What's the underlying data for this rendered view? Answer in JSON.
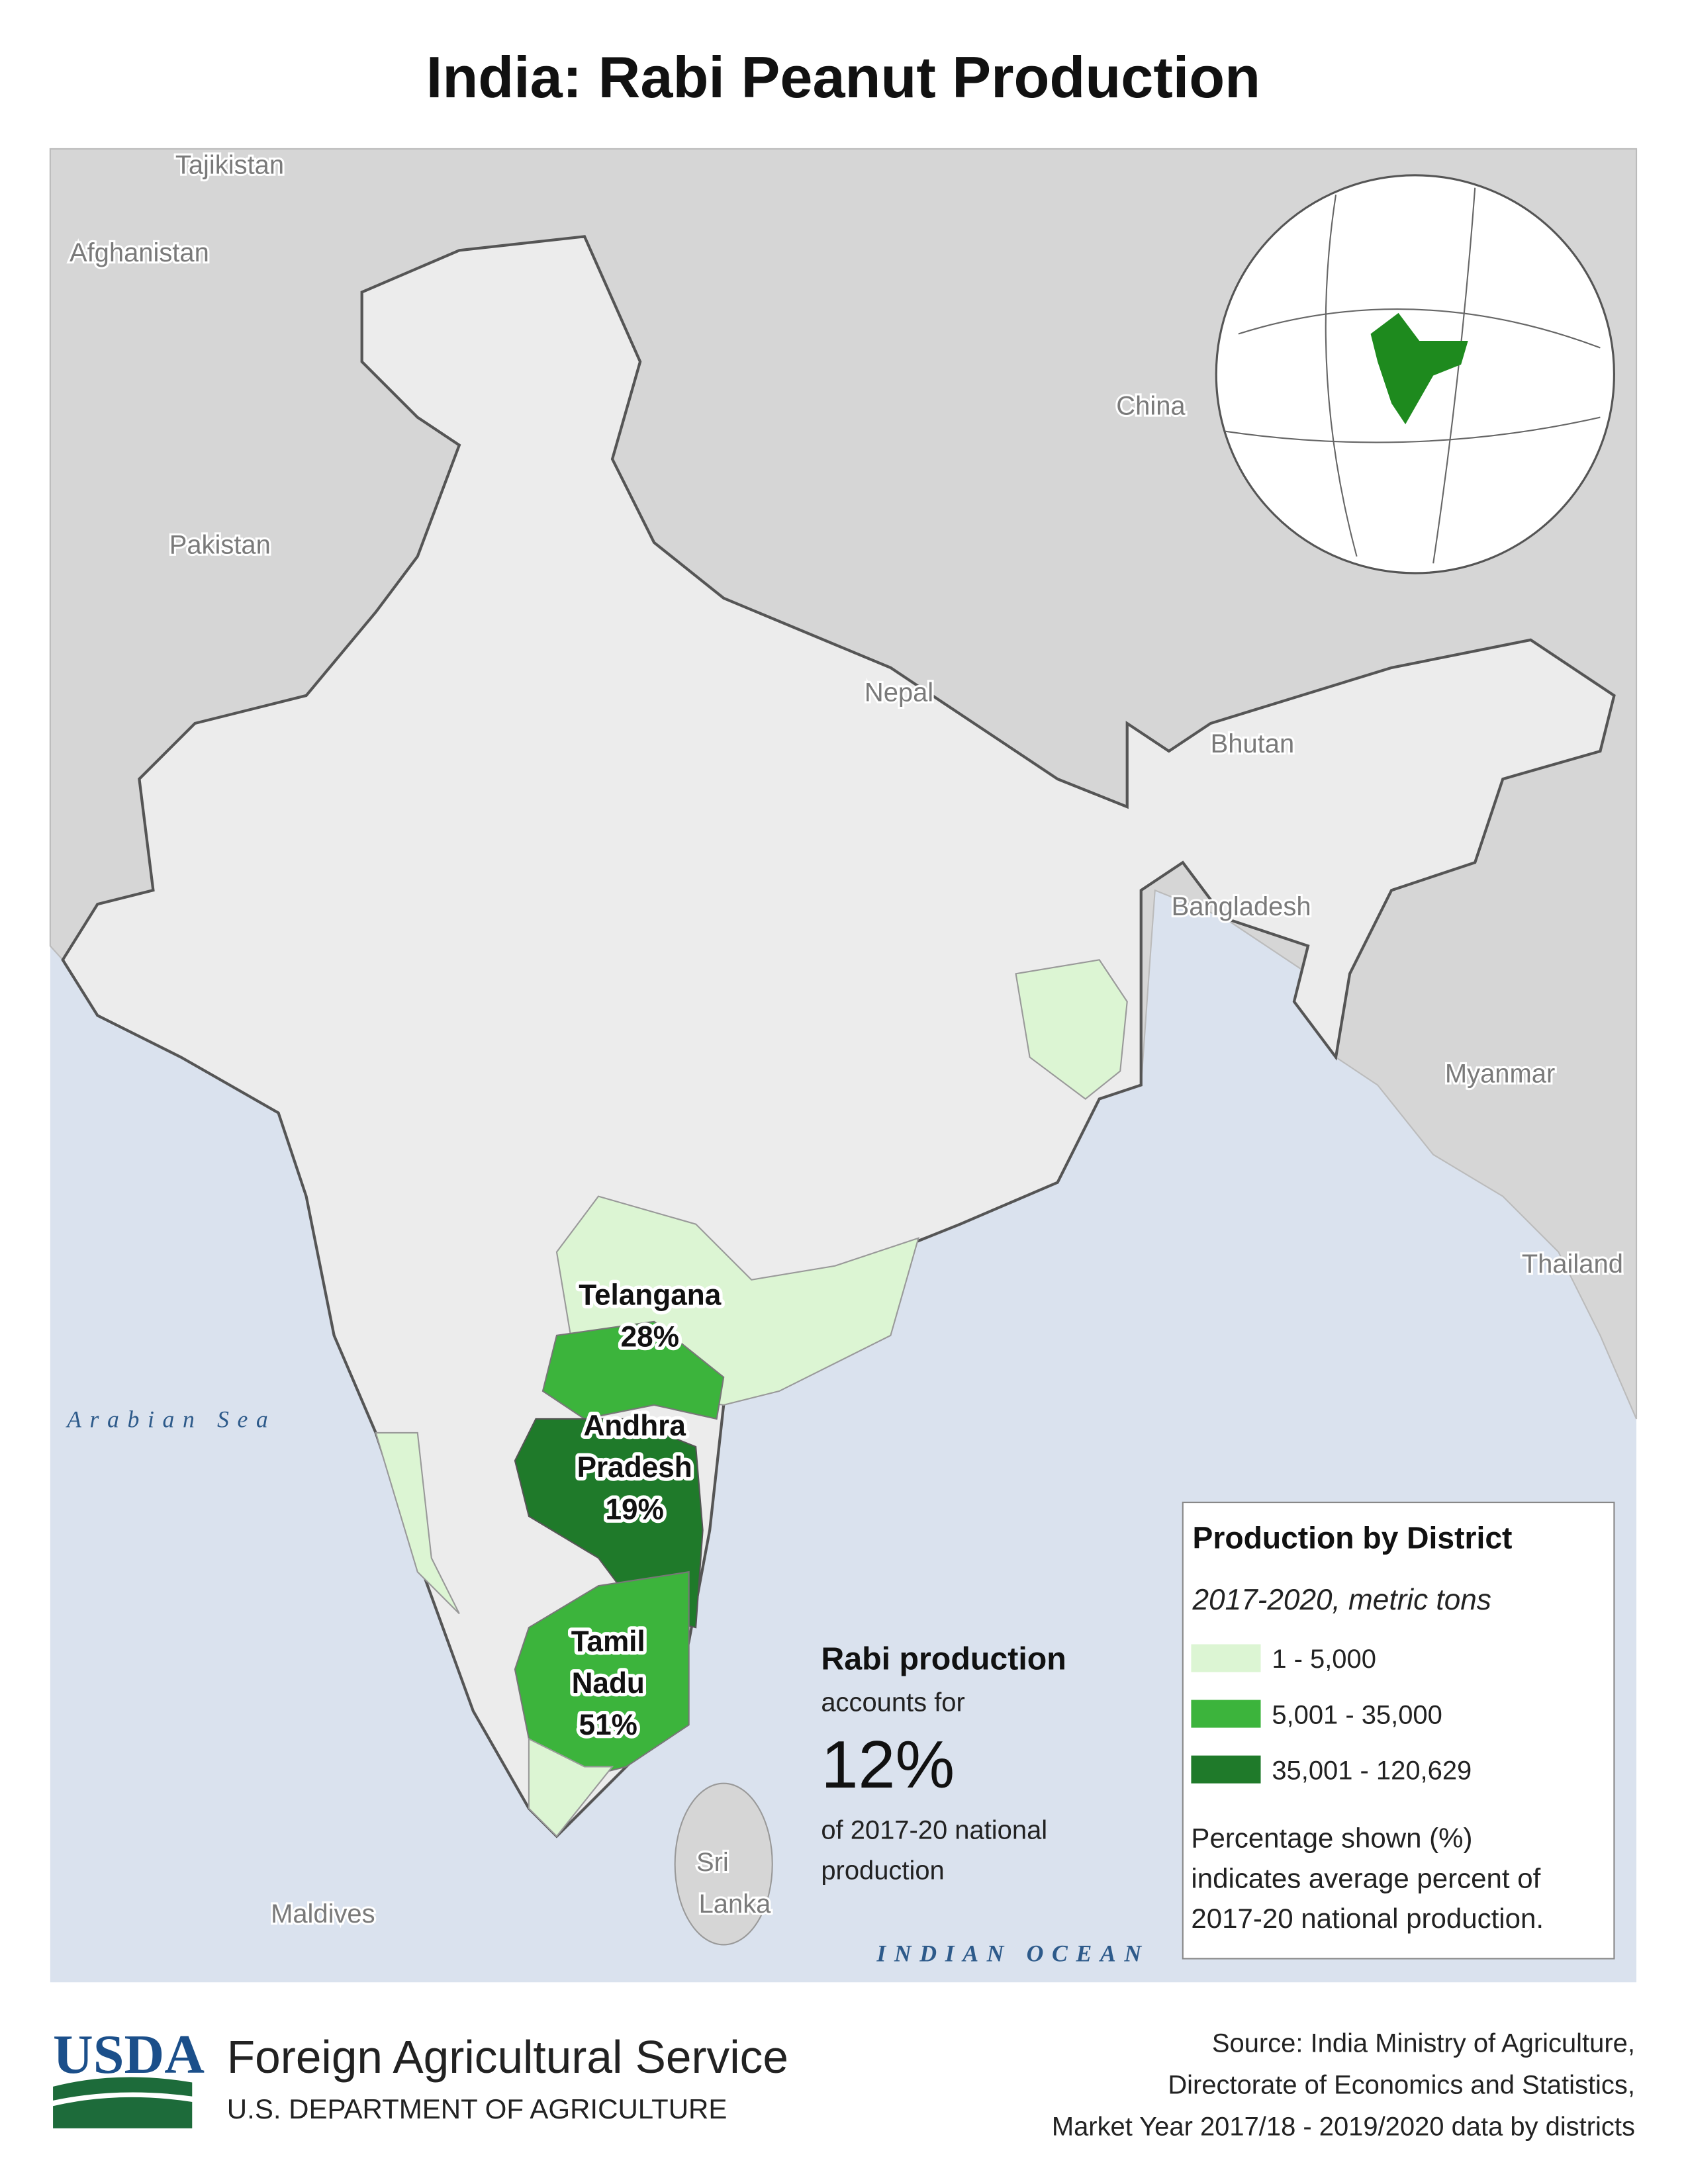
{
  "title": "India: Rabi Peanut Production",
  "map_labels": {
    "tajikistan": "Tajikistan",
    "afghanistan": "Afghanistan",
    "pakistan": "Pakistan",
    "china": "China",
    "nepal": "Nepal",
    "bhutan": "Bhutan",
    "bangladesh": "Bangladesh",
    "myanmar": "Myanmar",
    "thailand": "Thailand",
    "arabian_sea": "Arabian Sea",
    "sri_lanka": [
      "Sri",
      "Lanka"
    ],
    "maldives": "Maldives",
    "indian_ocean": "INDIAN OCEAN"
  },
  "states": [
    {
      "name_lines": [
        "Telangana"
      ],
      "share": "28%"
    },
    {
      "name_lines": [
        "Andhra",
        "Pradesh"
      ],
      "share": "19%"
    },
    {
      "name_lines": [
        "Tamil",
        "Nadu"
      ],
      "share": "51%"
    }
  ],
  "callout": {
    "heading": "Rabi production",
    "line1": "accounts for",
    "big": "12%",
    "line2": "of 2017-20 national",
    "line3": "production"
  },
  "legend": {
    "title": "Production by District",
    "subtitle": "2017-2020, metric tons",
    "items": [
      {
        "label": "1 - 5,000",
        "color": "#dcf5d3"
      },
      {
        "label": "5,001 - 35,000",
        "color": "#3cb43c"
      },
      {
        "label": "35,001 - 120,629",
        "color": "#1f7a2a"
      }
    ],
    "note": [
      "Percentage shown (%)",
      "indicates average percent of",
      "2017-20 national production."
    ]
  },
  "footer": {
    "logo": "USDA",
    "agency": "Foreign Agricultural Service",
    "department": "U.S. DEPARTMENT OF AGRICULTURE",
    "source": [
      "Source: India Ministry of Agriculture,",
      "Directorate of Economics and Statistics,",
      "Market Year 2017/18 - 2019/2020 data by districts"
    ]
  }
}
